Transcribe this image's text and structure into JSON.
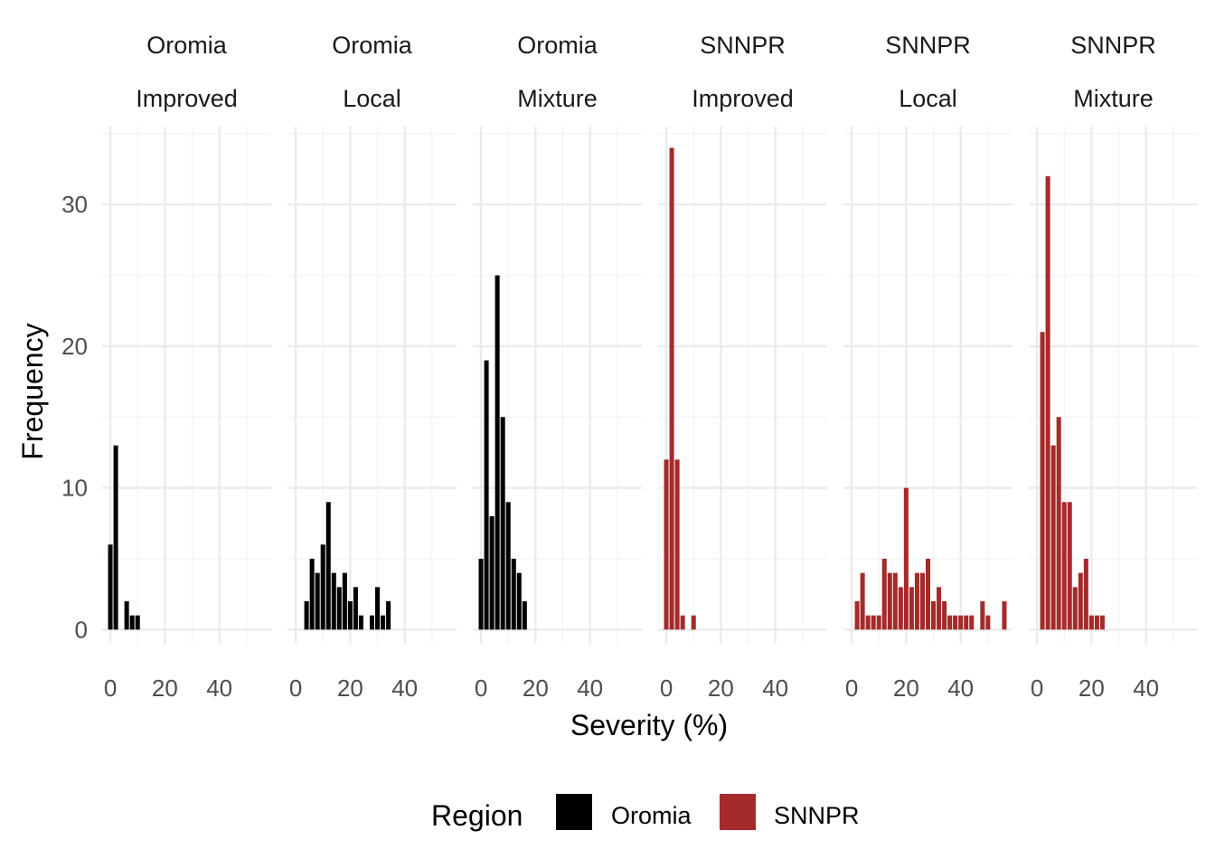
{
  "chart_data": {
    "type": "bar",
    "xlabel": "Severity (%)",
    "ylabel": "Frequency",
    "xlim": [
      -3,
      59
    ],
    "ylim": [
      -1,
      35.5
    ],
    "x_ticks": [
      0,
      20,
      40
    ],
    "y_ticks": [
      0,
      10,
      20,
      30
    ],
    "bin_width": 2,
    "grid": true,
    "legend": {
      "title": "Region",
      "position": "bottom",
      "entries": [
        {
          "name": "Oromia",
          "color": "#000000"
        },
        {
          "name": "SNNPR",
          "color": "#a52a2a"
        }
      ]
    },
    "panels": [
      {
        "region": "Oromia",
        "variety": "Improved",
        "color": "#000000",
        "bars": [
          {
            "x": 0,
            "y": 6
          },
          {
            "x": 2,
            "y": 13
          },
          {
            "x": 6,
            "y": 2
          },
          {
            "x": 8,
            "y": 1
          },
          {
            "x": 10,
            "y": 1
          }
        ]
      },
      {
        "region": "Oromia",
        "variety": "Local",
        "color": "#000000",
        "bars": [
          {
            "x": 4,
            "y": 2
          },
          {
            "x": 6,
            "y": 5
          },
          {
            "x": 8,
            "y": 4
          },
          {
            "x": 10,
            "y": 6
          },
          {
            "x": 12,
            "y": 9
          },
          {
            "x": 14,
            "y": 4
          },
          {
            "x": 16,
            "y": 3
          },
          {
            "x": 18,
            "y": 4
          },
          {
            "x": 20,
            "y": 2
          },
          {
            "x": 22,
            "y": 3
          },
          {
            "x": 24,
            "y": 1
          },
          {
            "x": 28,
            "y": 1
          },
          {
            "x": 30,
            "y": 3
          },
          {
            "x": 32,
            "y": 1
          },
          {
            "x": 34,
            "y": 2
          }
        ]
      },
      {
        "region": "Oromia",
        "variety": "Mixture",
        "color": "#000000",
        "bars": [
          {
            "x": 0,
            "y": 5
          },
          {
            "x": 2,
            "y": 19
          },
          {
            "x": 4,
            "y": 8
          },
          {
            "x": 6,
            "y": 25
          },
          {
            "x": 8,
            "y": 15
          },
          {
            "x": 10,
            "y": 9
          },
          {
            "x": 12,
            "y": 5
          },
          {
            "x": 14,
            "y": 4
          },
          {
            "x": 16,
            "y": 2
          }
        ]
      },
      {
        "region": "SNNPR",
        "variety": "Improved",
        "color": "#a52a2a",
        "bars": [
          {
            "x": 0,
            "y": 12
          },
          {
            "x": 2,
            "y": 34
          },
          {
            "x": 4,
            "y": 12
          },
          {
            "x": 6,
            "y": 1
          },
          {
            "x": 10,
            "y": 1
          }
        ]
      },
      {
        "region": "SNNPR",
        "variety": "Local",
        "color": "#a52a2a",
        "bars": [
          {
            "x": 2,
            "y": 2
          },
          {
            "x": 4,
            "y": 4
          },
          {
            "x": 6,
            "y": 1
          },
          {
            "x": 8,
            "y": 1
          },
          {
            "x": 10,
            "y": 1
          },
          {
            "x": 12,
            "y": 5
          },
          {
            "x": 14,
            "y": 4
          },
          {
            "x": 16,
            "y": 4
          },
          {
            "x": 18,
            "y": 3
          },
          {
            "x": 20,
            "y": 10
          },
          {
            "x": 22,
            "y": 3
          },
          {
            "x": 24,
            "y": 4
          },
          {
            "x": 26,
            "y": 4
          },
          {
            "x": 28,
            "y": 5
          },
          {
            "x": 30,
            "y": 2
          },
          {
            "x": 32,
            "y": 3
          },
          {
            "x": 34,
            "y": 2
          },
          {
            "x": 36,
            "y": 1
          },
          {
            "x": 38,
            "y": 1
          },
          {
            "x": 40,
            "y": 1
          },
          {
            "x": 42,
            "y": 1
          },
          {
            "x": 44,
            "y": 1
          },
          {
            "x": 48,
            "y": 2
          },
          {
            "x": 50,
            "y": 1
          },
          {
            "x": 56,
            "y": 2
          }
        ]
      },
      {
        "region": "SNNPR",
        "variety": "Mixture",
        "color": "#a52a2a",
        "bars": [
          {
            "x": 2,
            "y": 21
          },
          {
            "x": 4,
            "y": 32
          },
          {
            "x": 6,
            "y": 13
          },
          {
            "x": 8,
            "y": 15
          },
          {
            "x": 10,
            "y": 9
          },
          {
            "x": 12,
            "y": 9
          },
          {
            "x": 14,
            "y": 3
          },
          {
            "x": 16,
            "y": 4
          },
          {
            "x": 18,
            "y": 5
          },
          {
            "x": 20,
            "y": 1
          },
          {
            "x": 22,
            "y": 1
          },
          {
            "x": 24,
            "y": 1
          }
        ]
      }
    ]
  }
}
